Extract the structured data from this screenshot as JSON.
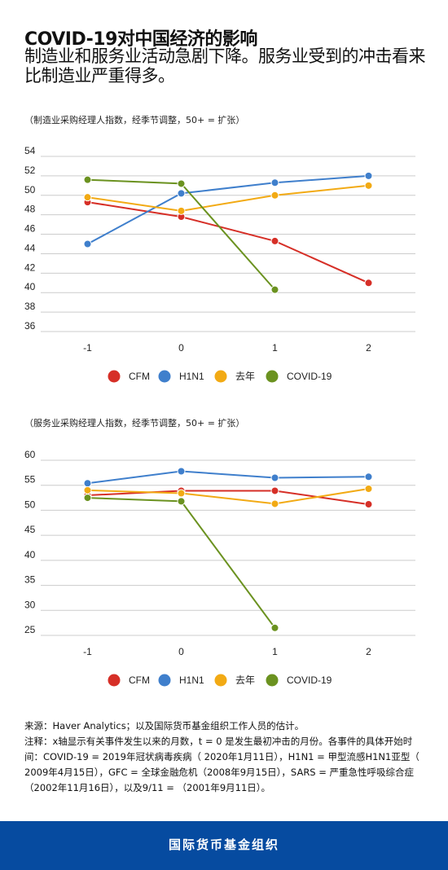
{
  "title": "COVID-19对中国经济的影响",
  "subtitle": "制造业和服务业活动急剧下降。服务业受到的冲击看来比制造业严重得多。",
  "colors": {
    "CFM": "#d62f27",
    "H1N1": "#3f7fcc",
    "去年": "#f2aa14",
    "COVID-19": "#6b9220",
    "footer_bg": "#064ba0",
    "grid": "#cccccc"
  },
  "chart_data": [
    {
      "type": "line",
      "note": "（制造业采购经理人指数，经季节调整，50+ = 扩张）",
      "x": [
        -1,
        0,
        1,
        2
      ],
      "x_tick_labels": [
        "-1",
        "0",
        "1",
        "2"
      ],
      "ylim": [
        36,
        54
      ],
      "y_ticks": [
        36,
        38,
        40,
        42,
        44,
        46,
        48,
        50,
        52,
        54
      ],
      "grid": true,
      "legend_position": "bottom",
      "series": [
        {
          "name": "CFM",
          "x": [
            -1,
            0,
            1,
            2
          ],
          "values": [
            49.3,
            47.8,
            45.3,
            41.0
          ]
        },
        {
          "name": "H1N1",
          "x": [
            -1,
            0,
            1,
            2
          ],
          "values": [
            45.0,
            50.2,
            51.3,
            52.0
          ]
        },
        {
          "name": "去年",
          "x": [
            -1,
            0,
            1,
            2
          ],
          "values": [
            49.8,
            48.4,
            50.0,
            51.0
          ]
        },
        {
          "name": "COVID-19",
          "x": [
            -1,
            0,
            1
          ],
          "values": [
            51.6,
            51.2,
            40.3
          ]
        }
      ]
    },
    {
      "type": "line",
      "note": "（服务业采购经理人指数，经季节调整，50+ = 扩张）",
      "x": [
        -1,
        0,
        1,
        2
      ],
      "x_tick_labels": [
        "-1",
        "0",
        "1",
        "2"
      ],
      "ylim": [
        25,
        60
      ],
      "y_ticks": [
        25,
        30,
        35,
        40,
        45,
        50,
        55,
        60
      ],
      "grid": true,
      "legend_position": "bottom",
      "series": [
        {
          "name": "CFM",
          "x": [
            -1,
            0,
            1,
            2
          ],
          "values": [
            53.0,
            53.9,
            53.9,
            51.2
          ]
        },
        {
          "name": "H1N1",
          "x": [
            -1,
            0,
            1,
            2
          ],
          "values": [
            55.4,
            57.8,
            56.5,
            56.7
          ]
        },
        {
          "name": "去年",
          "x": [
            -1,
            0,
            1,
            2
          ],
          "values": [
            54.0,
            53.4,
            51.3,
            54.3
          ]
        },
        {
          "name": "COVID-19",
          "x": [
            -1,
            0,
            1
          ],
          "values": [
            52.5,
            51.8,
            26.5
          ]
        }
      ]
    }
  ],
  "footer": {
    "source": "来源：Haver Analytics；以及国际货币基金组织工作人员的估计。",
    "notes": "注释：x轴显示有关事件发生以来的月数，t = 0 是发生最初冲击的月份。各事件的具体开始时间：COVID-19 = 2019年冠状病毒疾病（ 2020年1月11日），H1N1 = 甲型流感H1N1亚型（ 2009年4月15日），GFC = 全球金融危机（2008年9月15日），SARS = 严重急性呼吸综合症（2002年11月16日），以及9/11 = （2001年9月11日）。"
  },
  "brand": "国际货币基金组织"
}
